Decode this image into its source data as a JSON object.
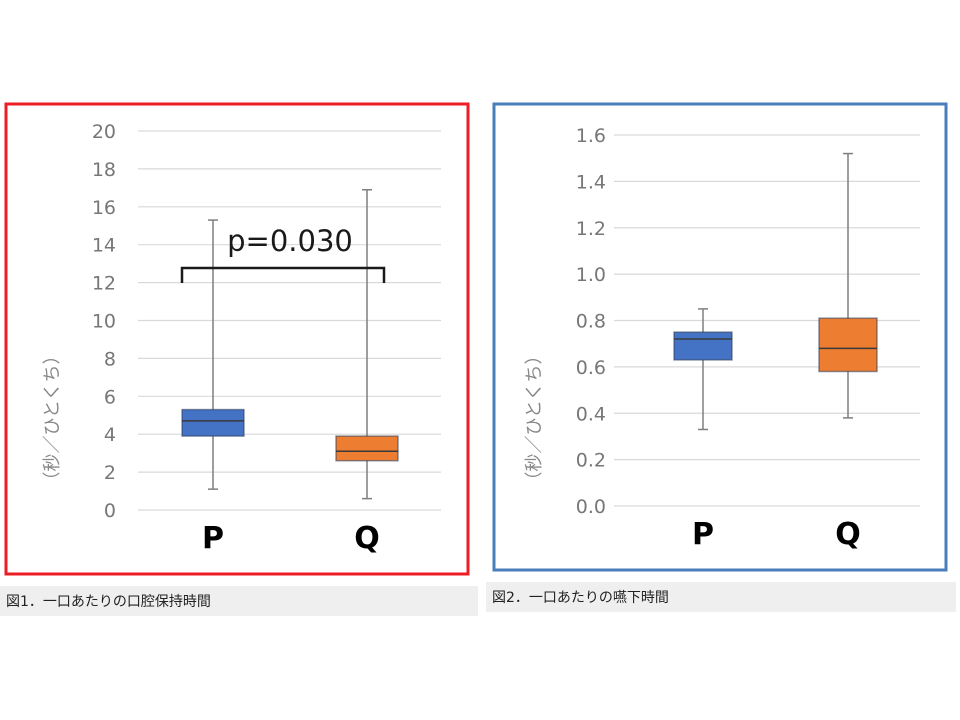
{
  "figures": [
    {
      "caption": "図1．一口あたりの口腔保持時間",
      "frame_color": "#ee1c24"
    },
    {
      "caption": "図2．一口あたりの嚥下時間",
      "frame_color": "#4a7ebb"
    }
  ],
  "chart_data": [
    {
      "type": "boxplot",
      "ylabel": "（秒／ひとくち）",
      "ylim": [
        0,
        20
      ],
      "yticks": [
        0,
        2,
        4,
        6,
        8,
        10,
        12,
        14,
        16,
        18,
        20
      ],
      "ytick_labels": [
        "0",
        "2",
        "4",
        "6",
        "8",
        "10",
        "12",
        "14",
        "16",
        "18",
        "20"
      ],
      "grid": true,
      "annotation": "p=0.030",
      "categories": [
        "P",
        "Q"
      ],
      "boxes": [
        {
          "label": "P",
          "min": 1.1,
          "q1": 3.9,
          "median": 4.7,
          "q3": 5.3,
          "max": 15.3,
          "color": "#4472c4"
        },
        {
          "label": "Q",
          "min": 0.6,
          "q1": 2.6,
          "median": 3.1,
          "q3": 3.9,
          "max": 16.9,
          "color": "#ed7d31"
        }
      ]
    },
    {
      "type": "boxplot",
      "ylabel": "（秒／ひとくち）",
      "ylim": [
        0,
        1.6
      ],
      "yticks": [
        0,
        0.2,
        0.4,
        0.6,
        0.8,
        1.0,
        1.2,
        1.4,
        1.6
      ],
      "ytick_labels": [
        "0.0",
        "0.2",
        "0.4",
        "0.6",
        "0.8",
        "1.0",
        "1.2",
        "1.4",
        "1.6"
      ],
      "grid": true,
      "categories": [
        "P",
        "Q"
      ],
      "boxes": [
        {
          "label": "P",
          "min": 0.33,
          "q1": 0.63,
          "median": 0.72,
          "q3": 0.75,
          "max": 0.85,
          "color": "#4472c4"
        },
        {
          "label": "Q",
          "min": 0.38,
          "q1": 0.58,
          "median": 0.68,
          "q3": 0.81,
          "max": 1.52,
          "color": "#ed7d31"
        }
      ]
    }
  ]
}
